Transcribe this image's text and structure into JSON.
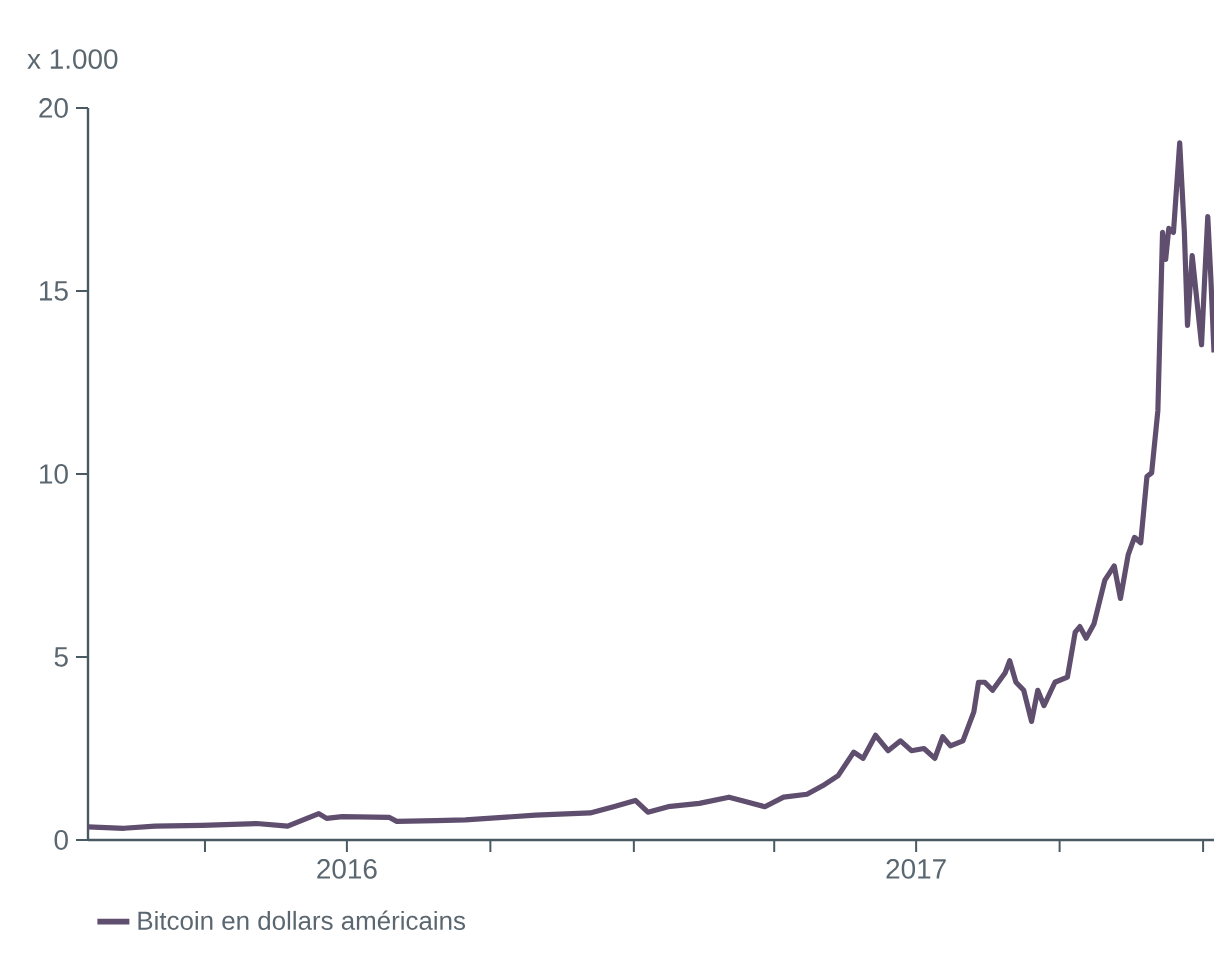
{
  "chart_data": {
    "type": "line",
    "ylabel": "x 1.000",
    "x": [
      "2016-01-17",
      "2016-02-09",
      "2016-02-29",
      "2016-03-30",
      "2016-05-04",
      "2016-05-24",
      "2016-06-03",
      "2016-06-13",
      "2016-06-18",
      "2016-06-28",
      "2016-07-28",
      "2016-08-02",
      "2016-08-27",
      "2016-09-15",
      "2016-10-30",
      "2016-12-04",
      "2016-12-19",
      "2017-01-02",
      "2017-01-10",
      "2017-01-23",
      "2017-02-12",
      "2017-03-03",
      "2017-03-11",
      "2017-03-26",
      "2017-04-07",
      "2017-04-22",
      "2017-05-02",
      "2017-05-12",
      "2017-05-22",
      "2017-05-28",
      "2017-06-05",
      "2017-06-13",
      "2017-06-21",
      "2017-06-28",
      "2017-07-06",
      "2017-07-13",
      "2017-07-18",
      "2017-07-23",
      "2017-07-31",
      "2017-08-07",
      "2017-08-10",
      "2017-08-14",
      "2017-08-19",
      "2017-08-27",
      "2017-08-30",
      "2017-09-03",
      "2017-09-08",
      "2017-09-13",
      "2017-09-17",
      "2017-09-21",
      "2017-09-28",
      "2017-10-06",
      "2017-10-11",
      "2017-10-14",
      "2017-10-18",
      "2017-10-23",
      "2017-10-30",
      "2017-11-05",
      "2017-11-09",
      "2017-11-14",
      "2017-11-18",
      "2017-11-22",
      "2017-11-26",
      "2017-11-29",
      "2017-12-03",
      "2017-12-06",
      "2017-12-08",
      "2017-12-10",
      "2017-12-13",
      "2017-12-17",
      "2017-12-20",
      "2017-12-22",
      "2017-12-25",
      "2017-12-31",
      "2018-01-02",
      "2018-01-04",
      "2018-01-06",
      "2018-01-08"
    ],
    "series": [
      {
        "name": "Bitcoin en dollars américains",
        "color": "#5f4e6e",
        "values": [
          0.36,
          0.32,
          0.38,
          0.4,
          0.45,
          0.38,
          0.55,
          0.72,
          0.59,
          0.64,
          0.62,
          0.51,
          0.53,
          0.55,
          0.68,
          0.74,
          0.91,
          1.08,
          0.76,
          0.91,
          1.0,
          1.17,
          1.08,
          0.91,
          1.17,
          1.25,
          1.48,
          1.76,
          2.4,
          2.23,
          2.86,
          2.44,
          2.71,
          2.44,
          2.5,
          2.23,
          2.82,
          2.57,
          2.71,
          3.5,
          4.31,
          4.31,
          4.09,
          4.56,
          4.9,
          4.31,
          4.09,
          3.24,
          4.09,
          3.67,
          4.31,
          4.45,
          5.68,
          5.83,
          5.51,
          5.9,
          7.1,
          7.49,
          6.6,
          7.8,
          8.27,
          8.12,
          9.93,
          10.03,
          11.73,
          16.6,
          15.86,
          16.71,
          16.6,
          19.05,
          16.6,
          14.06,
          15.97,
          13.53,
          15.33,
          17.03,
          15.33,
          13.32
        ]
      }
    ],
    "xlim": [
      "2016-01-17",
      "2018-01-08"
    ],
    "xticks": [
      {
        "value": "2016-04-01",
        "label": null
      },
      {
        "value": "2016-07-01",
        "label": "2016"
      },
      {
        "value": "2016-10-01",
        "label": null
      },
      {
        "value": "2017-01-01",
        "label": null
      },
      {
        "value": "2017-04-01",
        "label": null
      },
      {
        "value": "2017-07-01",
        "label": "2017"
      },
      {
        "value": "2017-10-01",
        "label": null
      },
      {
        "value": "2018-01-01",
        "label": null
      }
    ],
    "ylim": [
      0,
      20
    ],
    "yticks": [
      0,
      5,
      10,
      15,
      20
    ],
    "grid": false,
    "legend": "bottom",
    "marker": "none",
    "line_style": "solid"
  }
}
